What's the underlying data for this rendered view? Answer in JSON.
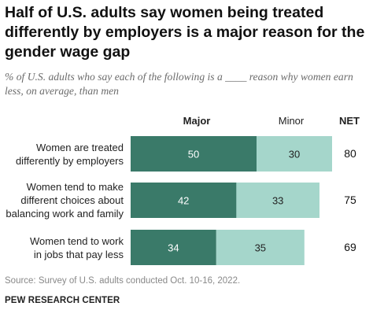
{
  "title": "Half of U.S. adults say women being treated differently by employers is a major reason for the gender wage gap",
  "subtitle": "% of U.S. adults who say each of the following is a ____ reason why women earn less, on average, than men",
  "columns": {
    "major": "Major",
    "minor": "Minor",
    "net": "NET"
  },
  "source": "Source: Survey of U.S. adults conducted Oct. 10-16, 2022.",
  "brand": "PEW RESEARCH CENTER",
  "colors": {
    "major": "#3a7a69",
    "minor": "#a5d6cb"
  },
  "chart_data": {
    "type": "bar",
    "orientation": "horizontal",
    "stacked": true,
    "categories": [
      "Women are treated differently by employers",
      "Women tend to make different choices about balancing work and family",
      "Women tend to work in jobs that pay less"
    ],
    "category_lines": [
      [
        "Women are treated",
        "differently by employers"
      ],
      [
        "Women tend to make",
        "different choices about",
        "balancing work and family"
      ],
      [
        "Women tend to work",
        "in jobs that pay less"
      ]
    ],
    "series": [
      {
        "name": "Major",
        "values": [
          50,
          42,
          34
        ]
      },
      {
        "name": "Minor",
        "values": [
          30,
          33,
          35
        ]
      }
    ],
    "net": [
      80,
      75,
      69
    ],
    "xlim": [
      0,
      80
    ]
  }
}
